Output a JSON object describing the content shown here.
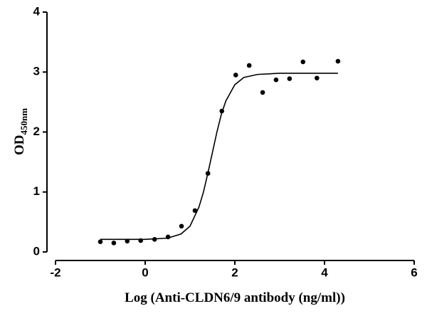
{
  "chart_data": {
    "type": "scatter",
    "x_label": "Log (Anti-CLDN6/9 antibody (ng/ml))",
    "y_label": "OD",
    "y_label_sub": "450nm",
    "xlim": [
      -2,
      6
    ],
    "xticks": [
      -2,
      0,
      2,
      4,
      6
    ],
    "ylim": [
      0,
      4
    ],
    "yticks": [
      0,
      1,
      2,
      3,
      4
    ],
    "series": [
      {
        "style": "markers",
        "color": "#000000",
        "x": [
          -1.0,
          -0.7,
          -0.4,
          -0.1,
          0.21,
          0.51,
          0.81,
          1.11,
          1.4,
          1.71,
          2.02,
          2.32,
          2.62,
          2.92,
          3.22,
          3.52,
          3.83,
          4.3
        ],
        "values": [
          0.17,
          0.15,
          0.18,
          0.19,
          0.21,
          0.25,
          0.43,
          0.69,
          1.31,
          2.35,
          2.95,
          3.11,
          2.66,
          2.87,
          2.89,
          3.17,
          2.9,
          3.18
        ]
      },
      {
        "style": "line",
        "color": "#000000",
        "x": [
          -1.0,
          -0.5,
          0,
          0.5,
          0.8,
          1.0,
          1.2,
          1.3,
          1.4,
          1.5,
          1.6,
          1.7,
          1.8,
          2.0,
          2.2,
          2.5,
          3.0,
          3.5,
          4.0,
          4.3
        ],
        "values": [
          0.21,
          0.21,
          0.21,
          0.23,
          0.3,
          0.43,
          0.75,
          1.0,
          1.32,
          1.66,
          2.0,
          2.3,
          2.52,
          2.79,
          2.91,
          2.96,
          2.98,
          2.98,
          2.98,
          2.98
        ]
      }
    ]
  }
}
